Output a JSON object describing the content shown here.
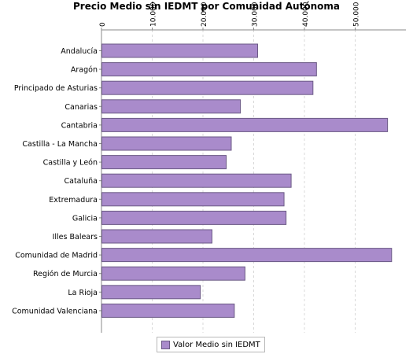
{
  "chart_data": {
    "type": "bar",
    "orientation": "horizontal",
    "title": "Precio Medio sin IEDMT por Comunidad Autónoma",
    "xlabel": "",
    "ylabel": "",
    "categories": [
      "Andalucía",
      "Aragón",
      "Principado de Asturias",
      "Canarias",
      "Cantabria",
      "Castilla - La Mancha",
      "Castilla y León",
      "Cataluña",
      "Extremadura",
      "Galicia",
      "Illes Balears",
      "Comunidad de Madrid",
      "Región de Murcia",
      "La Rioja",
      "Comunidad Valenciana"
    ],
    "series": [
      {
        "name": "Valor Medio sin IEDMT",
        "color": "#a98bcb",
        "values": [
          30700,
          42300,
          41600,
          27300,
          56300,
          25500,
          24500,
          37300,
          35900,
          36300,
          21700,
          57100,
          28200,
          19400,
          26100
        ]
      }
    ],
    "xlim": [
      0,
      60000
    ],
    "ticks": [
      {
        "value": 0,
        "label": "0"
      },
      {
        "value": 10000,
        "label": "10.000"
      },
      {
        "value": 20000,
        "label": "20.000"
      },
      {
        "value": 30000,
        "label": "30.000"
      },
      {
        "value": 40000,
        "label": "40.000"
      },
      {
        "value": 50000,
        "label": "50.000"
      }
    ],
    "axis_position": "top",
    "grid": true,
    "legend_position": "bottom-center"
  }
}
